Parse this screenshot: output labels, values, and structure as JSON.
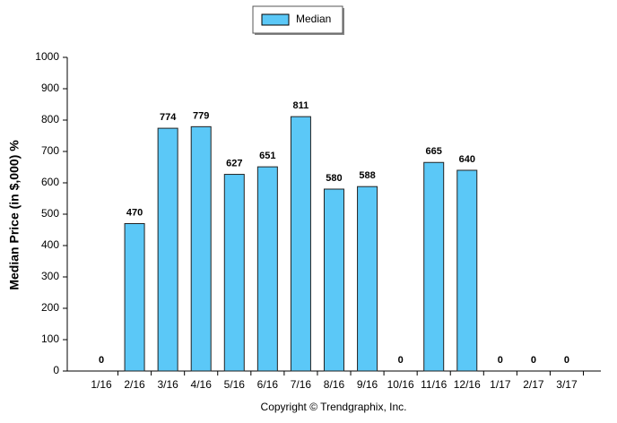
{
  "chart_data": {
    "type": "bar",
    "y_label": "Median Price (in $,000) %",
    "footer": "Copyright © Trendgraphix, Inc.",
    "categories": [
      "1/16",
      "2/16",
      "3/16",
      "4/16",
      "5/16",
      "6/16",
      "7/16",
      "8/16",
      "9/16",
      "10/16",
      "11/16",
      "12/16",
      "1/17",
      "2/17",
      "3/17"
    ],
    "series": [
      {
        "name": "Median",
        "color": "#5bc8f7",
        "values": [
          0,
          470,
          774,
          779,
          627,
          651,
          811,
          580,
          588,
          0,
          665,
          640,
          0,
          0,
          0
        ]
      }
    ],
    "ylim": [
      0,
      1000
    ],
    "yticks": [
      0,
      100,
      200,
      300,
      400,
      500,
      600,
      700,
      800,
      900,
      1000
    ],
    "grid": false,
    "legend": "top"
  }
}
